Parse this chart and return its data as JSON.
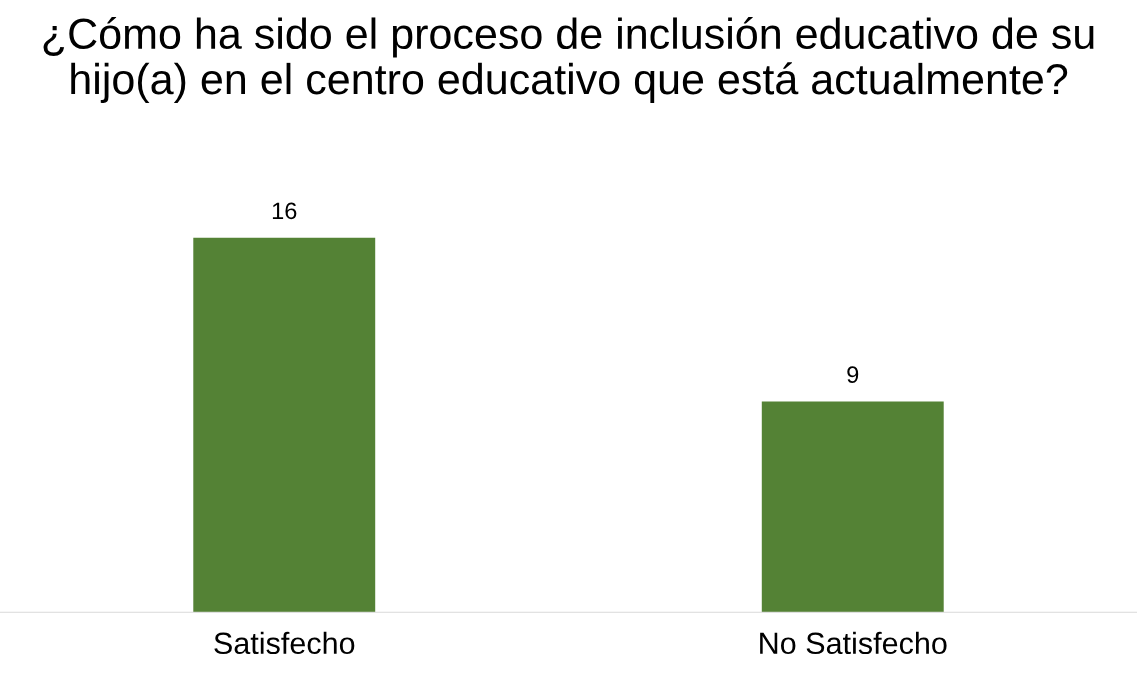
{
  "chart_data": {
    "type": "bar",
    "title": "¿Cómo ha sido el proceso de inclusión educativo de su hijo(a) en el centro educativo que está actualmente?",
    "categories": [
      "Satisfecho",
      "No Satisfecho"
    ],
    "values": [
      16,
      9
    ],
    "color": "#548235",
    "data_labels": true,
    "tick_labels": "x",
    "grid": false,
    "legend": false
  }
}
